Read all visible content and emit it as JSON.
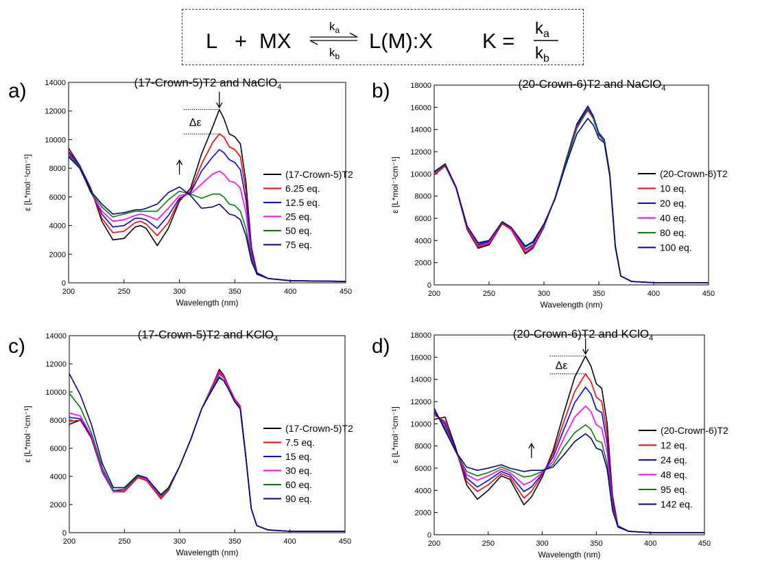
{
  "scheme": {
    "ligand": "L",
    "plus": "+",
    "salt": "MX",
    "k_forward": "k",
    "k_forward_sub": "a",
    "k_backward": "k",
    "k_backward_sub": "b",
    "product": "L(M):X",
    "equilibrium_lhs": "K =",
    "frac_num": "k",
    "frac_num_sub": "a",
    "frac_den": "k",
    "frac_den_sub": "b"
  },
  "delta_label": "Δε",
  "chart_data": [
    {
      "type": "line",
      "panel_label": "a)",
      "title": "(17-Crown-5)T2 and NaClO",
      "title_sub": "4",
      "xlabel": "Wavelength (nm)",
      "ylabel": "ε [L*mol⁻¹cm⁻¹]",
      "xlim": [
        200,
        450
      ],
      "ylim": [
        0,
        14000
      ],
      "xticks": [
        200,
        250,
        300,
        350,
        400,
        450
      ],
      "yticks": [
        0,
        2000,
        4000,
        6000,
        8000,
        10000,
        12000,
        14000
      ],
      "x": [
        200,
        210,
        220,
        230,
        240,
        250,
        260,
        265,
        270,
        280,
        290,
        300,
        310,
        320,
        330,
        336,
        340,
        345,
        350,
        355,
        360,
        365,
        370,
        380,
        400,
        450
      ],
      "series": [
        {
          "name": "(17-Crown-5)T2",
          "color": "#000000",
          "values": [
            9400,
            8200,
            6600,
            4300,
            3000,
            3100,
            3900,
            4000,
            3800,
            2600,
            3800,
            5700,
            6600,
            9000,
            10900,
            12100,
            11500,
            10400,
            10200,
            9700,
            7000,
            2500,
            700,
            300,
            150,
            100
          ]
        },
        {
          "name": "6.25 eq.",
          "color": "#ff0000",
          "values": [
            9200,
            8200,
            6500,
            4500,
            3500,
            3600,
            4200,
            4300,
            4100,
            3300,
            4200,
            5800,
            6400,
            8300,
            9800,
            10400,
            10200,
            9500,
            9300,
            8800,
            6400,
            2400,
            700,
            300,
            150,
            100
          ]
        },
        {
          "name": "12.5 eq.",
          "color": "#0000ff",
          "values": [
            9100,
            8200,
            6400,
            4800,
            3900,
            4000,
            4500,
            4500,
            4400,
            3800,
            4700,
            5900,
            6300,
            7800,
            8800,
            9300,
            9100,
            8600,
            8400,
            7900,
            5800,
            2200,
            700,
            300,
            150,
            100
          ]
        },
        {
          "name": "25 eq.",
          "color": "#ff00ff",
          "values": [
            9000,
            8100,
            6300,
            5000,
            4300,
            4400,
            4700,
            4800,
            4700,
            4400,
            5200,
            6100,
            6200,
            6900,
            7600,
            7800,
            7600,
            7100,
            7000,
            6600,
            4900,
            1900,
            600,
            300,
            150,
            100
          ]
        },
        {
          "name": "50 eq.",
          "color": "#008000",
          "values": [
            8900,
            8100,
            6300,
            5300,
            4600,
            4800,
            5000,
            5000,
            5000,
            5000,
            5800,
            6400,
            6200,
            5900,
            6200,
            6200,
            6000,
            5500,
            5400,
            5000,
            3800,
            1700,
            600,
            300,
            150,
            100
          ]
        },
        {
          "name": "75 eq.",
          "color": "#00008b",
          "values": [
            8800,
            8000,
            6400,
            5500,
            4800,
            4900,
            5100,
            5100,
            5200,
            5500,
            6300,
            6700,
            6100,
            5200,
            5300,
            5500,
            5200,
            4800,
            4700,
            4400,
            3300,
            1500,
            600,
            300,
            150,
            100
          ]
        }
      ],
      "legend": "right",
      "annotations": {
        "arrow_down_x": 336,
        "arrow_up_x": 300
      }
    },
    {
      "type": "line",
      "panel_label": "b)",
      "title": "(20-Crown-6)T2 and NaClO",
      "title_sub": "4",
      "xlabel": "Wavelength (nm)",
      "ylabel": "ε [L*mol⁻¹cm⁻¹]",
      "xlim": [
        200,
        450
      ],
      "ylim": [
        0,
        18000
      ],
      "xticks": [
        200,
        250,
        300,
        350,
        400,
        450
      ],
      "yticks": [
        0,
        2000,
        4000,
        6000,
        8000,
        10000,
        12000,
        14000,
        16000,
        18000
      ],
      "x": [
        200,
        210,
        220,
        230,
        240,
        250,
        262,
        270,
        283,
        290,
        300,
        310,
        320,
        330,
        340,
        345,
        350,
        355,
        360,
        365,
        370,
        380,
        400,
        450
      ],
      "series": [
        {
          "name": "(20-Crown-6)T2",
          "color": "#000000",
          "values": [
            10100,
            10800,
            8700,
            5000,
            3300,
            3600,
            5500,
            5000,
            2800,
            3300,
            5200,
            7800,
            11200,
            14500,
            16100,
            15200,
            13600,
            13000,
            10000,
            3500,
            800,
            300,
            200,
            200
          ]
        },
        {
          "name": "10 eq.",
          "color": "#ff0000",
          "values": [
            9900,
            10700,
            8700,
            5100,
            3400,
            3700,
            5500,
            5000,
            2900,
            3400,
            5300,
            7800,
            11100,
            14400,
            15900,
            15100,
            13600,
            13000,
            10000,
            3500,
            800,
            300,
            200,
            200
          ]
        },
        {
          "name": "20 eq.",
          "color": "#0000ff",
          "values": [
            10100,
            10900,
            8800,
            5200,
            3600,
            3900,
            5600,
            5100,
            3200,
            3600,
            5400,
            7800,
            11100,
            14300,
            16100,
            15200,
            13700,
            13100,
            10100,
            3600,
            800,
            300,
            200,
            200
          ]
        },
        {
          "name": "40 eq.",
          "color": "#ff00ff",
          "values": [
            10000,
            10800,
            8700,
            5200,
            3500,
            3800,
            5600,
            5100,
            3100,
            3500,
            5300,
            7800,
            11000,
            14200,
            15700,
            15000,
            13500,
            12900,
            10000,
            3500,
            800,
            300,
            200,
            200
          ]
        },
        {
          "name": "80 eq.",
          "color": "#008000",
          "values": [
            10100,
            10800,
            8800,
            5300,
            3700,
            4000,
            5600,
            5200,
            3400,
            3800,
            5400,
            7800,
            11000,
            14100,
            15800,
            15000,
            13500,
            13000,
            10000,
            3500,
            800,
            300,
            200,
            200
          ]
        },
        {
          "name": "100 eq.",
          "color": "#00008b",
          "values": [
            10200,
            10900,
            8800,
            5300,
            3800,
            4000,
            5700,
            5200,
            3500,
            3900,
            5500,
            7700,
            10800,
            13600,
            15000,
            14400,
            13200,
            12800,
            9800,
            3400,
            800,
            300,
            200,
            200
          ]
        }
      ],
      "legend": "right"
    },
    {
      "type": "line",
      "panel_label": "c)",
      "title": "(17-Crown-5)T2 and KClO",
      "title_sub": "4",
      "xlabel": "Wavelength (nm)",
      "ylabel": "ε [L*mol⁻¹cm⁻¹]",
      "xlim": [
        200,
        450
      ],
      "ylim": [
        0,
        14000
      ],
      "xticks": [
        200,
        250,
        300,
        350,
        400,
        450
      ],
      "yticks": [
        0,
        2000,
        4000,
        6000,
        8000,
        10000,
        12000,
        14000
      ],
      "x": [
        200,
        210,
        220,
        230,
        240,
        250,
        262,
        270,
        283,
        290,
        300,
        310,
        320,
        330,
        336,
        340,
        345,
        350,
        355,
        360,
        365,
        370,
        380,
        400,
        450
      ],
      "series": [
        {
          "name": "(17-Crown-5)T2",
          "color": "#000000",
          "values": [
            7700,
            8000,
            6800,
            4400,
            3000,
            3000,
            4000,
            3800,
            2500,
            3100,
            4700,
            6600,
            8800,
            10500,
            11600,
            11200,
            10300,
            9500,
            9000,
            5500,
            1700,
            500,
            200,
            100,
            100
          ]
        },
        {
          "name": "7.5 eq.",
          "color": "#ff0000",
          "values": [
            7900,
            8000,
            6700,
            4300,
            2900,
            2900,
            3900,
            3700,
            2400,
            3000,
            4700,
            6600,
            8800,
            10500,
            11500,
            11100,
            10300,
            9500,
            9000,
            5500,
            1700,
            500,
            200,
            100,
            100
          ]
        },
        {
          "name": "15 eq.",
          "color": "#0000ff",
          "values": [
            8200,
            8100,
            6800,
            4300,
            2900,
            3000,
            4000,
            3800,
            2500,
            3100,
            4700,
            6600,
            8800,
            10400,
            11300,
            11000,
            10200,
            9400,
            8900,
            5400,
            1700,
            500,
            200,
            100,
            100
          ]
        },
        {
          "name": "30 eq.",
          "color": "#ff00ff",
          "values": [
            8500,
            8300,
            6900,
            4400,
            2900,
            3000,
            4000,
            3800,
            2500,
            3100,
            4700,
            6600,
            8800,
            10400,
            11400,
            11000,
            10200,
            9400,
            8900,
            5400,
            1700,
            500,
            200,
            100,
            100
          ]
        },
        {
          "name": "60 eq.",
          "color": "#008000",
          "values": [
            9900,
            8900,
            7100,
            4600,
            3000,
            3100,
            4000,
            3900,
            2600,
            3100,
            4700,
            6600,
            8800,
            10300,
            11100,
            10800,
            10100,
            9300,
            8800,
            5400,
            1700,
            500,
            200,
            100,
            100
          ]
        },
        {
          "name": "90 eq.",
          "color": "#00008b",
          "values": [
            11300,
            9800,
            7700,
            4900,
            3200,
            3200,
            4100,
            3900,
            2700,
            3200,
            4700,
            6600,
            8800,
            10200,
            11000,
            10800,
            10100,
            9300,
            8800,
            5400,
            1700,
            500,
            200,
            100,
            100
          ]
        }
      ],
      "legend": "right"
    },
    {
      "type": "line",
      "panel_label": "d)",
      "title": "(20-Crown-6)T2 and KClO",
      "title_sub": "4",
      "xlabel": "Wavelength (nm)",
      "ylabel": "ε [L*mol⁻¹cm⁻¹]",
      "xlim": [
        200,
        450
      ],
      "ylim": [
        0,
        18000
      ],
      "xticks": [
        200,
        250,
        300,
        350,
        400,
        450
      ],
      "yticks": [
        0,
        2000,
        4000,
        6000,
        8000,
        10000,
        12000,
        14000,
        16000,
        18000
      ],
      "x": [
        200,
        210,
        220,
        230,
        240,
        250,
        262,
        270,
        283,
        290,
        300,
        310,
        320,
        330,
        340,
        345,
        350,
        355,
        360,
        365,
        370,
        380,
        400,
        450
      ],
      "series": [
        {
          "name": "(20-Crown-6)T2",
          "color": "#000000",
          "values": [
            10400,
            10600,
            7800,
            4500,
            3200,
            4000,
            5300,
            5000,
            2700,
            3400,
            5200,
            7600,
            11000,
            14200,
            16100,
            15200,
            13600,
            13200,
            10000,
            3500,
            800,
            300,
            200,
            200
          ]
        },
        {
          "name": "12 eq.",
          "color": "#ff0000",
          "values": [
            10800,
            10200,
            7600,
            4800,
            3900,
            4500,
            5500,
            5200,
            3300,
            3900,
            5400,
            7300,
            10200,
            12900,
            14500,
            13800,
            12400,
            12000,
            9100,
            3200,
            800,
            300,
            200,
            200
          ]
        },
        {
          "name": "24 eq.",
          "color": "#0000ff",
          "values": [
            11000,
            10000,
            7600,
            5100,
            4300,
            4900,
            5700,
            5400,
            3900,
            4300,
            5500,
            7000,
            9500,
            11900,
            13300,
            12700,
            11300,
            11000,
            8300,
            3000,
            800,
            300,
            200,
            200
          ]
        },
        {
          "name": "48 eq.",
          "color": "#ff00ff",
          "values": [
            11200,
            9800,
            7500,
            5400,
            4900,
            5300,
            5900,
            5600,
            4500,
            4800,
            5600,
            6600,
            8700,
            10600,
            11600,
            11100,
            9900,
            9600,
            7400,
            2700,
            700,
            300,
            200,
            200
          ]
        },
        {
          "name": "95 eq.",
          "color": "#008000",
          "values": [
            11300,
            9600,
            7500,
            5700,
            5300,
            5600,
            6100,
            5800,
            5200,
            5300,
            5700,
            6300,
            7900,
            9200,
            9900,
            9500,
            8500,
            8300,
            6400,
            2400,
            700,
            300,
            200,
            200
          ]
        },
        {
          "name": "142 eq.",
          "color": "#00008b",
          "values": [
            11400,
            9400,
            7500,
            6100,
            5800,
            6000,
            6300,
            6000,
            5700,
            5800,
            5800,
            6100,
            7200,
            8400,
            9100,
            8700,
            7800,
            7600,
            5900,
            2200,
            700,
            300,
            200,
            200
          ]
        }
      ],
      "legend": "right",
      "annotations": {
        "arrow_down_x": 340,
        "arrow_up_x": 290
      }
    }
  ]
}
